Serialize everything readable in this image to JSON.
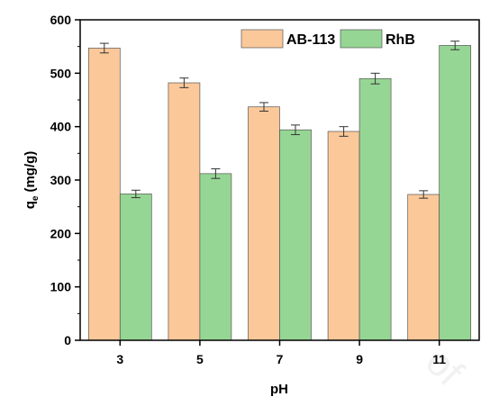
{
  "chart_data": {
    "type": "bar",
    "xlabel": "pH",
    "ylabel_main": "q",
    "ylabel_sub": "e",
    "ylabel_unit": "(mg/g)",
    "categories": [
      "3",
      "5",
      "7",
      "9",
      "11"
    ],
    "ylim": [
      0,
      600
    ],
    "yticks": [
      0,
      100,
      200,
      300,
      400,
      500,
      600
    ],
    "series": [
      {
        "name": "AB-113",
        "color": "#fbc89a",
        "values": [
          547,
          482,
          437,
          391,
          273
        ],
        "errors": [
          9,
          9,
          8,
          9,
          7
        ]
      },
      {
        "name": "RhB",
        "color": "#96d694",
        "values": [
          274,
          312,
          394,
          490,
          552
        ],
        "errors": [
          7,
          9,
          9,
          10,
          8
        ]
      }
    ],
    "legend_position": "top-right",
    "grid": false
  },
  "watermark": "of"
}
